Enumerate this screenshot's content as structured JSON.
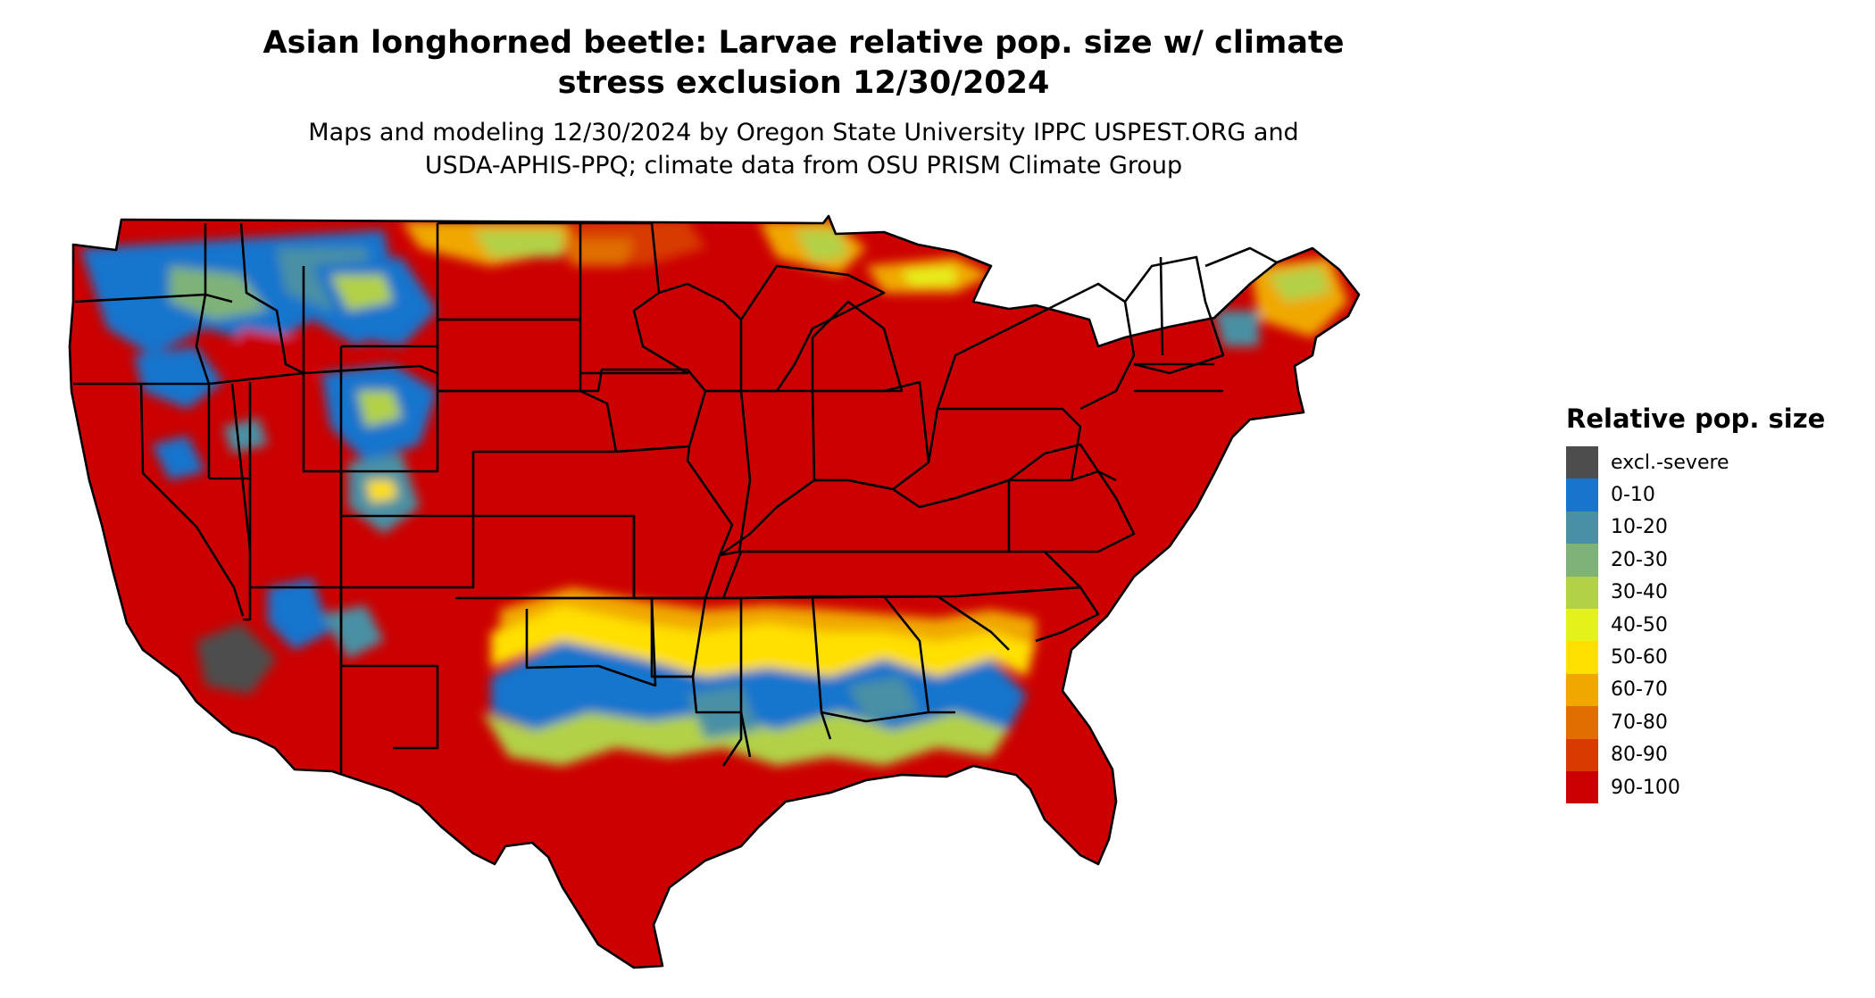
{
  "title_line1": "Asian longhorned beetle: Larvae relative pop. size w/ climate",
  "title_line2": "stress exclusion 12/30/2024",
  "subtitle_line1": "Maps and modeling 12/30/2024 by Oregon State University IPPC USPEST.ORG and",
  "subtitle_line2": "USDA-APHIS-PPQ; climate data from OSU PRISM Climate Group",
  "legend": {
    "title": "Relative pop. size",
    "items": [
      {
        "label": "excl.-severe",
        "color": "#4d4d4d"
      },
      {
        "label": "0-10",
        "color": "#1874cd"
      },
      {
        "label": "10-20",
        "color": "#4a90a4"
      },
      {
        "label": "20-30",
        "color": "#7fb279"
      },
      {
        "label": "30-40",
        "color": "#b2d147"
      },
      {
        "label": "40-50",
        "color": "#e5f11a"
      },
      {
        "label": "50-60",
        "color": "#ffe000"
      },
      {
        "label": "60-70",
        "color": "#f0a800"
      },
      {
        "label": "70-80",
        "color": "#e06e00"
      },
      {
        "label": "80-90",
        "color": "#d83a00"
      },
      {
        "label": "90-100",
        "color": "#cc0000"
      }
    ]
  }
}
